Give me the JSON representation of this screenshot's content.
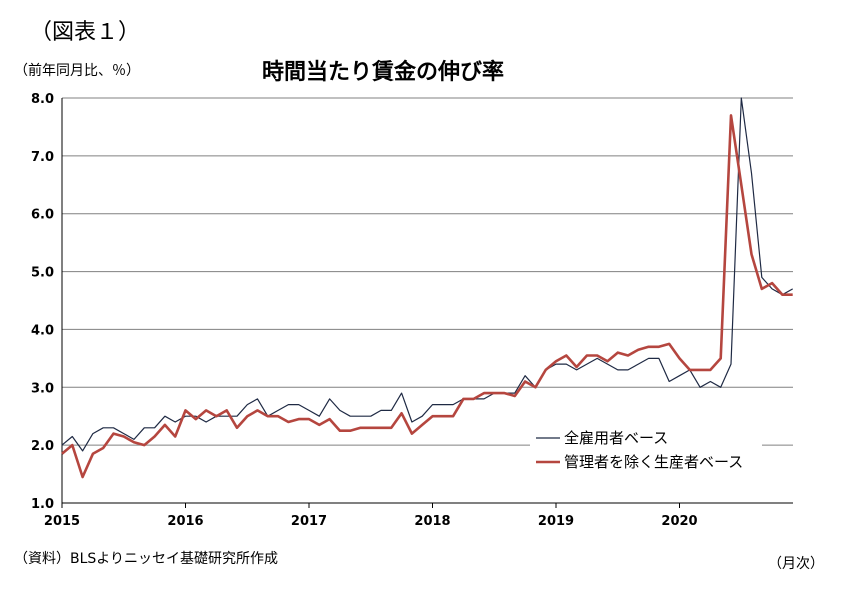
{
  "figure_label": "（図表１）",
  "unit_label": "（前年同月比、％）",
  "source_note": "（資料）BLSよりニッセイ基礎研究所作成",
  "x_unit": "（月次）",
  "chart_data": {
    "type": "line",
    "title": "時間当たり賃金の伸び率",
    "ylim": [
      1.0,
      8.0
    ],
    "yticks": [
      "1.0",
      "2.0",
      "3.0",
      "4.0",
      "5.0",
      "6.0",
      "7.0",
      "8.0"
    ],
    "xticks": [
      "2015",
      "2016",
      "2017",
      "2018",
      "2019",
      "2020"
    ],
    "x_start": "2015-01",
    "grid": true,
    "legend_position": "bottom-right",
    "series": [
      {
        "name": "全雇用者ベース",
        "color": "#1f2a44",
        "values": [
          2.0,
          2.15,
          1.9,
          2.2,
          2.3,
          2.3,
          2.2,
          2.1,
          2.3,
          2.3,
          2.5,
          2.4,
          2.5,
          2.5,
          2.4,
          2.5,
          2.5,
          2.5,
          2.7,
          2.8,
          2.5,
          2.6,
          2.7,
          2.7,
          2.6,
          2.5,
          2.8,
          2.6,
          2.5,
          2.5,
          2.5,
          2.6,
          2.6,
          2.9,
          2.4,
          2.5,
          2.7,
          2.7,
          2.7,
          2.8,
          2.8,
          2.8,
          2.9,
          2.9,
          2.9,
          3.2,
          3.0,
          3.3,
          3.4,
          3.4,
          3.3,
          3.4,
          3.5,
          3.4,
          3.3,
          3.3,
          3.4,
          3.5,
          3.5,
          3.1,
          3.2,
          3.3,
          3.0,
          3.1,
          3.0,
          3.4,
          8.0,
          6.7,
          4.9,
          4.7,
          4.6,
          4.7
        ]
      },
      {
        "name": "管理者を除く生産者ベース",
        "color": "#b5463f",
        "values": [
          1.85,
          2.0,
          1.45,
          1.85,
          1.95,
          2.2,
          2.15,
          2.05,
          2.0,
          2.15,
          2.35,
          2.15,
          2.6,
          2.45,
          2.6,
          2.5,
          2.6,
          2.3,
          2.5,
          2.6,
          2.5,
          2.5,
          2.4,
          2.45,
          2.45,
          2.35,
          2.45,
          2.25,
          2.25,
          2.3,
          2.3,
          2.3,
          2.3,
          2.55,
          2.2,
          2.35,
          2.5,
          2.5,
          2.5,
          2.8,
          2.8,
          2.9,
          2.9,
          2.9,
          2.85,
          3.1,
          3.0,
          3.3,
          3.45,
          3.55,
          3.35,
          3.55,
          3.55,
          3.45,
          3.6,
          3.55,
          3.65,
          3.7,
          3.7,
          3.75,
          3.5,
          3.3,
          3.3,
          3.3,
          3.5,
          7.7,
          6.5,
          5.3,
          4.7,
          4.8,
          4.6,
          4.6
        ]
      }
    ]
  }
}
